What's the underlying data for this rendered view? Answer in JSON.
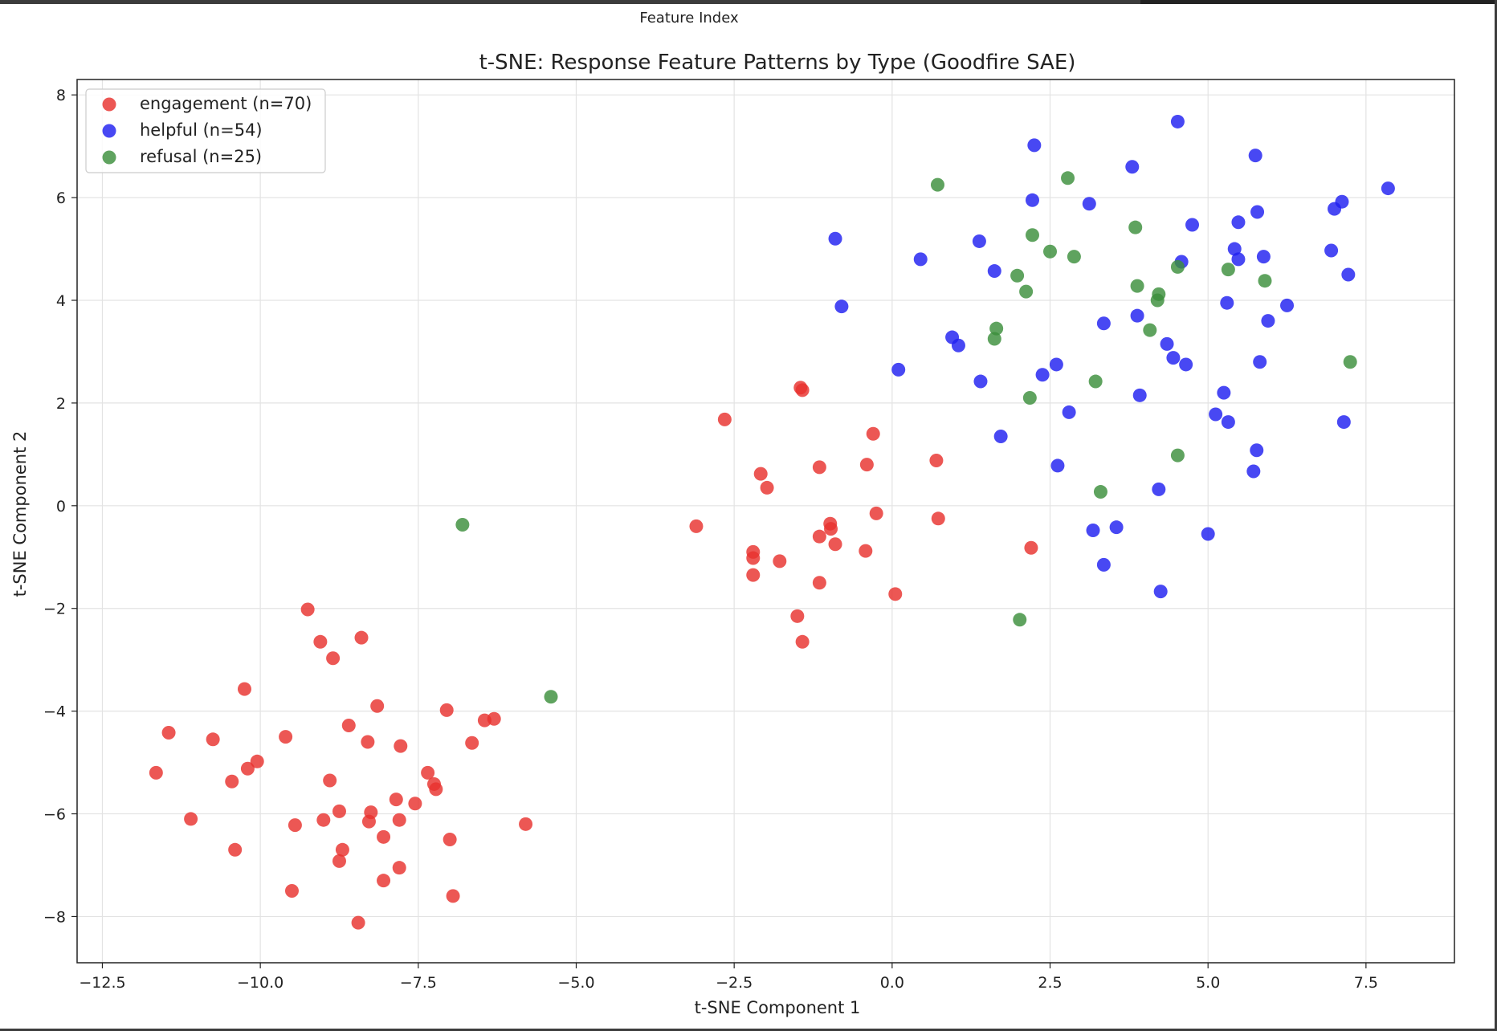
{
  "header": {
    "label": "Feature Index"
  },
  "chart_data": {
    "type": "scatter",
    "title": "t-SNE: Response Feature Patterns by Type (Goodfire SAE)",
    "xlabel": "t-SNE Component 1",
    "ylabel": "t-SNE Component 2",
    "xlim": [
      -12.9,
      8.9
    ],
    "ylim": [
      -8.9,
      8.3
    ],
    "xticks": [
      -12.5,
      -10.0,
      -7.5,
      -5.0,
      -2.5,
      0.0,
      2.5,
      5.0,
      7.5
    ],
    "xtick_labels": [
      "−12.5",
      "−10.0",
      "−7.5",
      "−5.0",
      "−2.5",
      "0.0",
      "2.5",
      "5.0",
      "7.5"
    ],
    "yticks": [
      -8,
      -6,
      -4,
      -2,
      0,
      2,
      4,
      6,
      8
    ],
    "ytick_labels": [
      "−8",
      "−6",
      "−4",
      "−2",
      "0",
      "2",
      "4",
      "6",
      "8"
    ],
    "grid": true,
    "legend_position": "top-left",
    "series": [
      {
        "name": "engagement (n=70)",
        "color": "#e8322e",
        "points": [
          [
            -11.65,
            -5.2
          ],
          [
            -11.45,
            -4.42
          ],
          [
            -11.1,
            -6.1
          ],
          [
            -10.75,
            -4.55
          ],
          [
            -10.45,
            -5.37
          ],
          [
            -10.4,
            -6.7
          ],
          [
            -10.25,
            -3.57
          ],
          [
            -10.2,
            -5.12
          ],
          [
            -10.05,
            -4.98
          ],
          [
            -9.6,
            -4.5
          ],
          [
            -9.5,
            -7.5
          ],
          [
            -9.45,
            -6.22
          ],
          [
            -9.25,
            -2.02
          ],
          [
            -9.05,
            -2.65
          ],
          [
            -9.0,
            -6.12
          ],
          [
            -8.9,
            -5.35
          ],
          [
            -8.85,
            -2.97
          ],
          [
            -8.75,
            -5.95
          ],
          [
            -8.75,
            -6.92
          ],
          [
            -8.7,
            -6.7
          ],
          [
            -8.6,
            -4.28
          ],
          [
            -8.45,
            -8.12
          ],
          [
            -8.4,
            -2.57
          ],
          [
            -8.3,
            -4.6
          ],
          [
            -8.28,
            -6.15
          ],
          [
            -8.25,
            -5.97
          ],
          [
            -8.15,
            -3.9
          ],
          [
            -8.05,
            -6.45
          ],
          [
            -8.05,
            -7.3
          ],
          [
            -7.85,
            -5.72
          ],
          [
            -7.8,
            -7.05
          ],
          [
            -7.8,
            -6.12
          ],
          [
            -7.78,
            -4.68
          ],
          [
            -7.55,
            -5.8
          ],
          [
            -7.35,
            -5.2
          ],
          [
            -7.25,
            -5.42
          ],
          [
            -7.22,
            -5.52
          ],
          [
            -7.05,
            -3.98
          ],
          [
            -7.0,
            -6.5
          ],
          [
            -6.95,
            -7.6
          ],
          [
            -6.65,
            -4.62
          ],
          [
            -6.45,
            -4.18
          ],
          [
            -6.3,
            -4.15
          ],
          [
            -5.8,
            -6.2
          ],
          [
            -3.1,
            -0.4
          ],
          [
            -2.65,
            1.68
          ],
          [
            -2.2,
            -0.9
          ],
          [
            -2.2,
            -1.02
          ],
          [
            -2.2,
            -1.35
          ],
          [
            -2.08,
            0.62
          ],
          [
            -1.98,
            0.35
          ],
          [
            -1.78,
            -1.08
          ],
          [
            -1.5,
            -2.15
          ],
          [
            -1.45,
            2.3
          ],
          [
            -1.42,
            2.25
          ],
          [
            -1.42,
            -2.65
          ],
          [
            -1.15,
            0.75
          ],
          [
            -1.15,
            -0.6
          ],
          [
            -1.15,
            -1.5
          ],
          [
            -0.98,
            -0.35
          ],
          [
            -0.97,
            -0.45
          ],
          [
            -0.9,
            -0.75
          ],
          [
            -0.42,
            -0.88
          ],
          [
            -0.4,
            0.8
          ],
          [
            -0.3,
            1.4
          ],
          [
            -0.25,
            -0.15
          ],
          [
            0.05,
            -1.72
          ],
          [
            0.7,
            0.88
          ],
          [
            0.73,
            -0.25
          ],
          [
            2.2,
            -0.82
          ]
        ]
      },
      {
        "name": "helpful (n=54)",
        "color": "#2020f0",
        "points": [
          [
            -0.9,
            5.2
          ],
          [
            -0.8,
            3.88
          ],
          [
            0.1,
            2.65
          ],
          [
            0.45,
            4.8
          ],
          [
            0.95,
            3.28
          ],
          [
            1.05,
            3.12
          ],
          [
            1.38,
            5.15
          ],
          [
            1.4,
            2.42
          ],
          [
            1.62,
            4.57
          ],
          [
            1.72,
            1.35
          ],
          [
            2.22,
            5.95
          ],
          [
            2.25,
            7.02
          ],
          [
            2.38,
            2.55
          ],
          [
            2.6,
            2.75
          ],
          [
            2.62,
            0.78
          ],
          [
            2.8,
            1.82
          ],
          [
            3.12,
            5.88
          ],
          [
            3.18,
            -0.48
          ],
          [
            3.35,
            3.55
          ],
          [
            3.35,
            -1.15
          ],
          [
            3.55,
            -0.42
          ],
          [
            3.8,
            6.6
          ],
          [
            3.88,
            3.7
          ],
          [
            3.92,
            2.15
          ],
          [
            4.22,
            0.32
          ],
          [
            4.25,
            -1.67
          ],
          [
            4.35,
            3.15
          ],
          [
            4.45,
            2.88
          ],
          [
            4.52,
            7.48
          ],
          [
            4.58,
            4.75
          ],
          [
            4.65,
            2.75
          ],
          [
            4.75,
            5.47
          ],
          [
            5.0,
            -0.55
          ],
          [
            5.12,
            1.78
          ],
          [
            5.25,
            2.2
          ],
          [
            5.3,
            3.95
          ],
          [
            5.32,
            1.63
          ],
          [
            5.42,
            5.0
          ],
          [
            5.48,
            5.52
          ],
          [
            5.48,
            4.8
          ],
          [
            5.72,
            0.67
          ],
          [
            5.75,
            6.82
          ],
          [
            5.77,
            1.08
          ],
          [
            5.78,
            5.72
          ],
          [
            5.82,
            2.8
          ],
          [
            5.88,
            4.85
          ],
          [
            5.95,
            3.6
          ],
          [
            6.25,
            3.9
          ],
          [
            6.95,
            4.97
          ],
          [
            7.0,
            5.78
          ],
          [
            7.12,
            5.92
          ],
          [
            7.15,
            1.63
          ],
          [
            7.22,
            4.5
          ],
          [
            7.85,
            6.18
          ]
        ]
      },
      {
        "name": "refusal (n=25)",
        "color": "#3c8f3c",
        "points": [
          [
            -6.8,
            -0.37
          ],
          [
            -5.4,
            -3.72
          ],
          [
            0.72,
            6.25
          ],
          [
            1.62,
            3.25
          ],
          [
            1.65,
            3.45
          ],
          [
            1.98,
            4.48
          ],
          [
            2.02,
            -2.22
          ],
          [
            2.12,
            4.17
          ],
          [
            2.18,
            2.1
          ],
          [
            2.22,
            5.27
          ],
          [
            2.5,
            4.95
          ],
          [
            2.78,
            6.38
          ],
          [
            2.88,
            4.85
          ],
          [
            3.22,
            2.42
          ],
          [
            3.3,
            0.27
          ],
          [
            3.85,
            5.42
          ],
          [
            3.88,
            4.28
          ],
          [
            4.08,
            3.42
          ],
          [
            4.2,
            4.0
          ],
          [
            4.22,
            4.12
          ],
          [
            4.52,
            0.98
          ],
          [
            4.52,
            4.65
          ],
          [
            5.32,
            4.6
          ],
          [
            5.9,
            4.38
          ],
          [
            7.25,
            2.8
          ]
        ]
      }
    ]
  }
}
